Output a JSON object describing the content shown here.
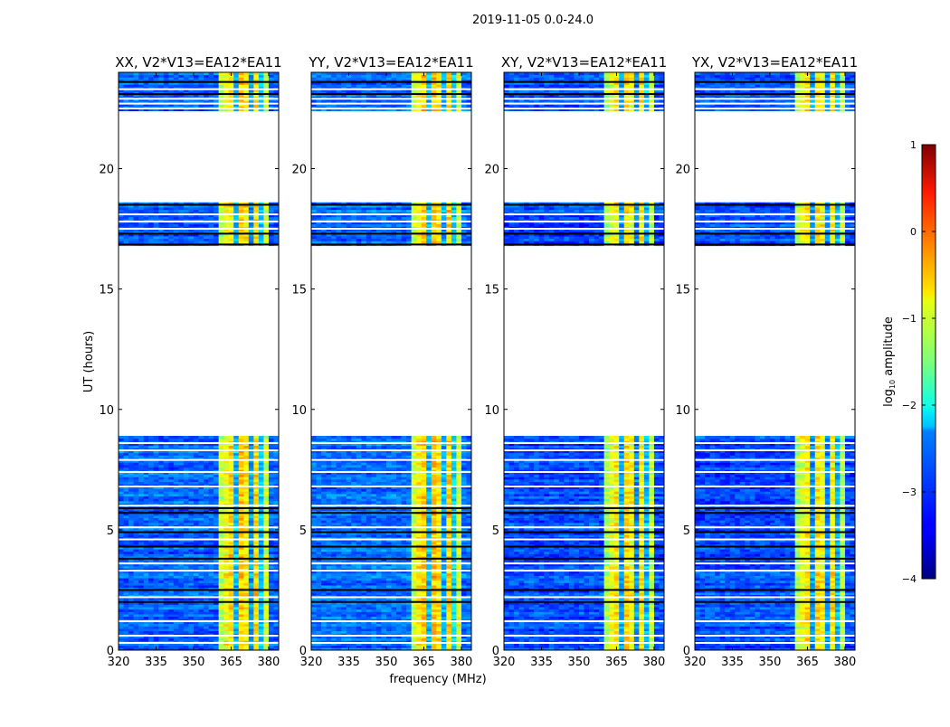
{
  "chart_data": {
    "type": "heatmap",
    "suptitle": "2019-11-05 0.0-24.0",
    "xlabel": "frequency (MHz)",
    "ylabel": "UT (hours)",
    "xlim": [
      320,
      384
    ],
    "ylim": [
      0,
      24
    ],
    "xticks": [
      320,
      335,
      350,
      365,
      380
    ],
    "yticks": [
      0,
      5,
      10,
      15,
      20
    ],
    "panels": [
      {
        "title": "XX, V2*V13=EA12*EA11",
        "offset": 0.0
      },
      {
        "title": "YY, V2*V13=EA12*EA11",
        "offset": 0.05
      },
      {
        "title": "XY, V2*V13=EA12*EA11",
        "offset": -0.1
      },
      {
        "title": "YX, V2*V13=EA12*EA11",
        "offset": -0.1
      }
    ],
    "freq_bin_MHz": 2,
    "time_bin_hours": 0.1,
    "channel_profile_log10": [
      -2.9,
      -2.9,
      -2.9,
      -2.9,
      -2.9,
      -2.9,
      -2.9,
      -2.9,
      -2.9,
      -2.9,
      -2.9,
      -2.9,
      -2.9,
      -2.9,
      -2.9,
      -2.9,
      -2.9,
      -2.9,
      -2.9,
      -2.9,
      -1.2,
      -0.9,
      -0.7,
      -2.5,
      -0.6,
      -0.8,
      -2.6,
      -0.7,
      -2.4,
      -1.1,
      -2.9,
      -2.9
    ],
    "data_segments_hours": [
      [
        0,
        8.9
      ],
      [
        16.8,
        18.6
      ],
      [
        22.4,
        24
      ]
    ],
    "flagged_white_hours": [
      0.3,
      0.6,
      1.2,
      2.2,
      3.3,
      3.6,
      4.6,
      5.1,
      6.0,
      6.8,
      7.4,
      7.9,
      8.3,
      8.6,
      17.5,
      17.8,
      18.1,
      22.5,
      22.7,
      22.9,
      23.3
    ],
    "zero_black_hours": [
      2.0,
      2.5,
      3.8,
      4.3,
      4.9,
      5.7,
      5.9,
      16.85,
      17.3,
      18.5,
      23.1,
      23.6
    ],
    "colorbar": {
      "label_prefix": "log",
      "label_sub": "10",
      "label_suffix": " amplitude",
      "range": [
        -4,
        1
      ],
      "ticks": [
        "1",
        "0",
        "−1",
        "−2",
        "−3",
        "−4"
      ],
      "tick_values": [
        1,
        0,
        -1,
        -2,
        -3,
        -4
      ],
      "colormap": "jet"
    }
  }
}
